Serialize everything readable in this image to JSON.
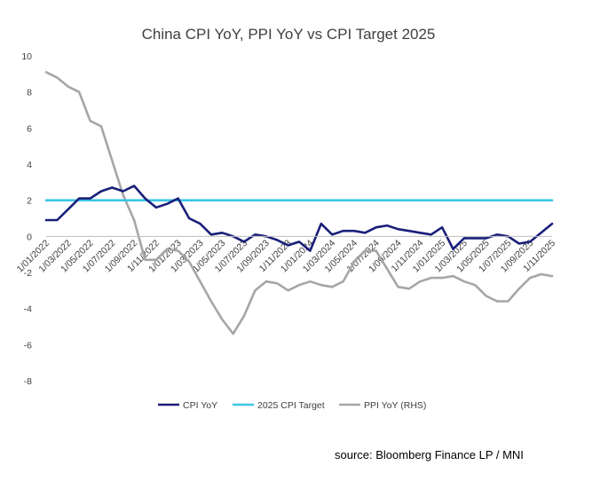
{
  "chart_data": {
    "type": "line",
    "title": "China CPI YoY, PPI YoY vs CPI Target 2025",
    "source": "source: Bloomberg Finance LP / MNI",
    "ylim": [
      -8,
      10
    ],
    "y_ticks": [
      10,
      8,
      6,
      4,
      2,
      0,
      -2,
      -4,
      -6,
      -8
    ],
    "grid": false,
    "legend_position": "bottom",
    "x_tick_labels": [
      "1/01/2022",
      "1/03/2022",
      "1/05/2022",
      "1/07/2022",
      "1/09/2022",
      "1/11/2022",
      "1/01/2023",
      "1/03/2023",
      "1/05/2023",
      "1/07/2023",
      "1/09/2023",
      "1/11/2023",
      "1/01/2024",
      "1/03/2024",
      "1/05/2024",
      "1/07/2024",
      "1/09/2024",
      "1/11/2024",
      "1/01/2025",
      "1/03/2025",
      "1/05/2025",
      "1/07/2025",
      "1/09/2025",
      "1/11/2025"
    ],
    "x": [
      "2022-01",
      "2022-02",
      "2022-03",
      "2022-04",
      "2022-05",
      "2022-06",
      "2022-07",
      "2022-08",
      "2022-09",
      "2022-10",
      "2022-11",
      "2022-12",
      "2023-01",
      "2023-02",
      "2023-03",
      "2023-04",
      "2023-05",
      "2023-06",
      "2023-07",
      "2023-08",
      "2023-09",
      "2023-10",
      "2023-11",
      "2023-12",
      "2024-01",
      "2024-02",
      "2024-03",
      "2024-04",
      "2024-05",
      "2024-06",
      "2024-07",
      "2024-08",
      "2024-09",
      "2024-10",
      "2024-11",
      "2024-12",
      "2025-01",
      "2025-02",
      "2025-03",
      "2025-04",
      "2025-05",
      "2025-06",
      "2025-07",
      "2025-08",
      "2025-09",
      "2025-10",
      "2025-11"
    ],
    "series": [
      {
        "name": "CPI YoY",
        "color": "#1a1f7a",
        "values": [
          0.9,
          0.9,
          1.5,
          2.1,
          2.1,
          2.5,
          2.7,
          2.5,
          2.8,
          2.1,
          1.6,
          1.8,
          2.1,
          1.0,
          0.7,
          0.1,
          0.2,
          0.0,
          -0.3,
          0.1,
          0.0,
          -0.2,
          -0.5,
          -0.3,
          -0.8,
          0.7,
          0.1,
          0.3,
          0.3,
          0.2,
          0.5,
          0.6,
          0.4,
          0.3,
          0.2,
          0.1,
          0.5,
          -0.7,
          -0.1,
          -0.1,
          -0.1,
          0.1,
          0.0,
          -0.4,
          -0.3,
          0.2,
          0.7
        ]
      },
      {
        "name": "2025 CPI Target",
        "color": "#3dc6e6",
        "constant": 2.0
      },
      {
        "name": "PPI YoY (RHS)",
        "color": "#a6a6a6",
        "values": [
          9.1,
          8.8,
          8.3,
          8.0,
          6.4,
          6.1,
          4.2,
          2.3,
          0.9,
          -1.3,
          -1.3,
          -0.7,
          -0.8,
          -1.4,
          -2.5,
          -3.6,
          -4.6,
          -5.4,
          -4.4,
          -3.0,
          -2.5,
          -2.6,
          -3.0,
          -2.7,
          -2.5,
          -2.7,
          -2.8,
          -2.5,
          -1.4,
          -0.8,
          -0.8,
          -1.8,
          -2.8,
          -2.9,
          -2.5,
          -2.3,
          -2.3,
          -2.2,
          -2.5,
          -2.7,
          -3.3,
          -3.6,
          -3.6,
          -2.9,
          -2.3,
          -2.1,
          -2.2
        ]
      }
    ]
  }
}
